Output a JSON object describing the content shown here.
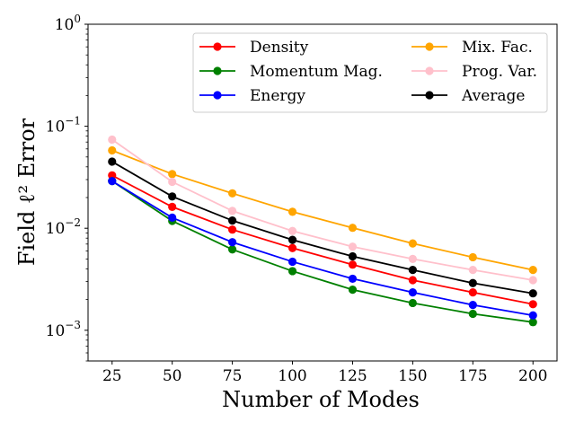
{
  "chart_data": {
    "type": "line",
    "xlabel": "Number of Modes",
    "ylabel": "Field ℓ² Error",
    "yscale": "log",
    "xlim": [
      15,
      210
    ],
    "ylim": [
      0.0005,
      1
    ],
    "grid": false,
    "legend_position": "top-right",
    "legend_columns": 2,
    "x": [
      25,
      50,
      75,
      100,
      125,
      150,
      175,
      200
    ],
    "x_ticks": [
      "25",
      "50",
      "75",
      "100",
      "125",
      "150",
      "175",
      "200"
    ],
    "y_ticks": [
      {
        "value": 1,
        "base": "10",
        "exp": "0"
      },
      {
        "value": 0.1,
        "base": "10",
        "exp": "−1"
      },
      {
        "value": 0.01,
        "base": "10",
        "exp": "−2"
      },
      {
        "value": 0.001,
        "base": "10",
        "exp": "−3"
      }
    ],
    "series": [
      {
        "name": "Density",
        "color": "#ff0000",
        "values": [
          0.033,
          0.0162,
          0.0097,
          0.0064,
          0.0044,
          0.0031,
          0.00235,
          0.0018
        ]
      },
      {
        "name": "Momentum Mag.",
        "color": "#008000",
        "values": [
          0.029,
          0.0118,
          0.0062,
          0.0038,
          0.0025,
          0.00185,
          0.00145,
          0.0012
        ]
      },
      {
        "name": "Energy",
        "color": "#0000ff",
        "values": [
          0.029,
          0.0127,
          0.0073,
          0.0047,
          0.0032,
          0.00235,
          0.00177,
          0.0014
        ]
      },
      {
        "name": "Mix. Fac.",
        "color": "#ffa500",
        "values": [
          0.058,
          0.034,
          0.022,
          0.0145,
          0.0101,
          0.0071,
          0.0052,
          0.0039
        ]
      },
      {
        "name": "Prog. Var.",
        "color": "#ffc0cb",
        "values": [
          0.074,
          0.0285,
          0.0148,
          0.0094,
          0.0066,
          0.005,
          0.0039,
          0.0031
        ]
      },
      {
        "name": "Average",
        "color": "#000000",
        "values": [
          0.045,
          0.0205,
          0.0119,
          0.0077,
          0.0053,
          0.0039,
          0.0029,
          0.0023
        ]
      }
    ]
  }
}
